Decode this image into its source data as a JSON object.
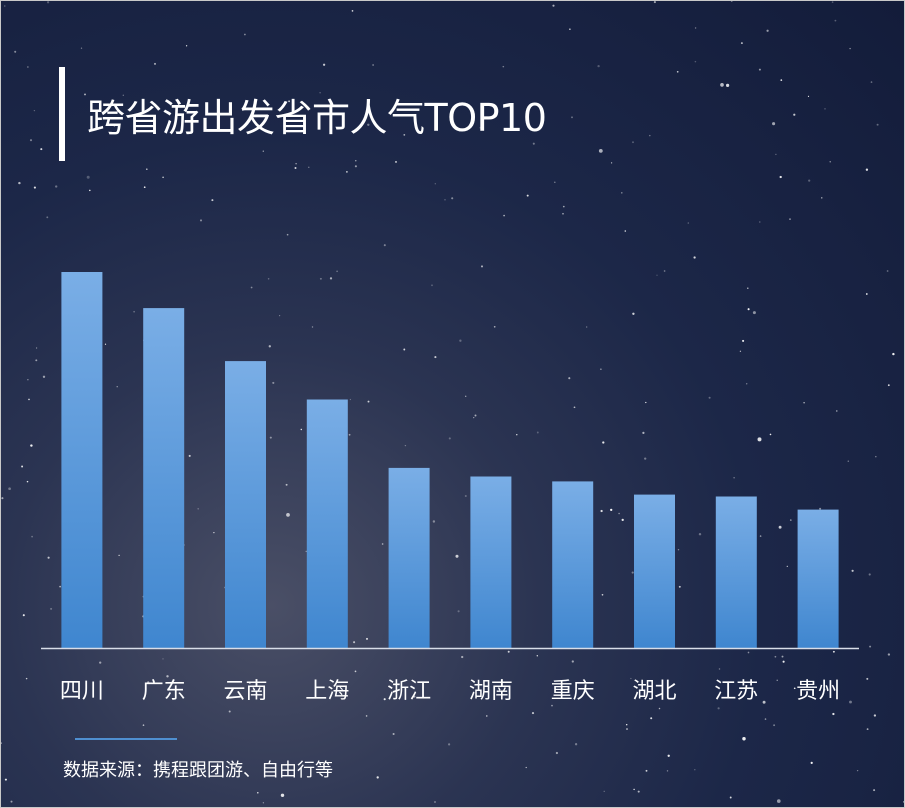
{
  "title": "跨省游出发省市人气TOP10",
  "source": "数据来源：携程跟团游、自由行等",
  "colors": {
    "bar_top": "#7aaee6",
    "bar_bottom": "#3f86cf",
    "axis": "#d8dde8",
    "text": "#ffffff"
  },
  "chart_data": {
    "type": "bar",
    "title": "跨省游出发省市人气TOP10",
    "categories": [
      "四川",
      "广东",
      "云南",
      "上海",
      "浙江",
      "湖南",
      "重庆",
      "湖北",
      "江苏",
      "贵州"
    ],
    "values": [
      100,
      90.4,
      76.3,
      66.1,
      47.9,
      45.6,
      44.3,
      40.8,
      40.3,
      36.8
    ],
    "ylim": [
      0,
      100
    ],
    "grid": false,
    "legend": "none"
  }
}
